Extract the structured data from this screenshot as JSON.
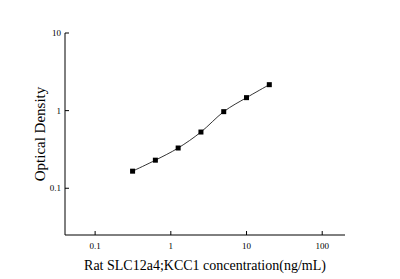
{
  "chart_data": {
    "type": "line",
    "x_label": "Rat SLC12a4;KCC1 concentration(ng/mL)",
    "y_label": "Optical Density",
    "log": true,
    "grid": false,
    "marker": "square",
    "line_style": "solid",
    "color": "#000000",
    "x": [
      0.3125,
      0.625,
      1.25,
      2.5,
      5,
      10,
      20
    ],
    "values": [
      0.166,
      0.23,
      0.33,
      0.53,
      0.97,
      1.47,
      2.16
    ],
    "xlim": [
      0.04,
      200
    ],
    "xticks": [
      0.1,
      1,
      10,
      100
    ],
    "ylim": [
      0.025,
      10
    ],
    "yticks": [
      0.1,
      1,
      10
    ]
  }
}
